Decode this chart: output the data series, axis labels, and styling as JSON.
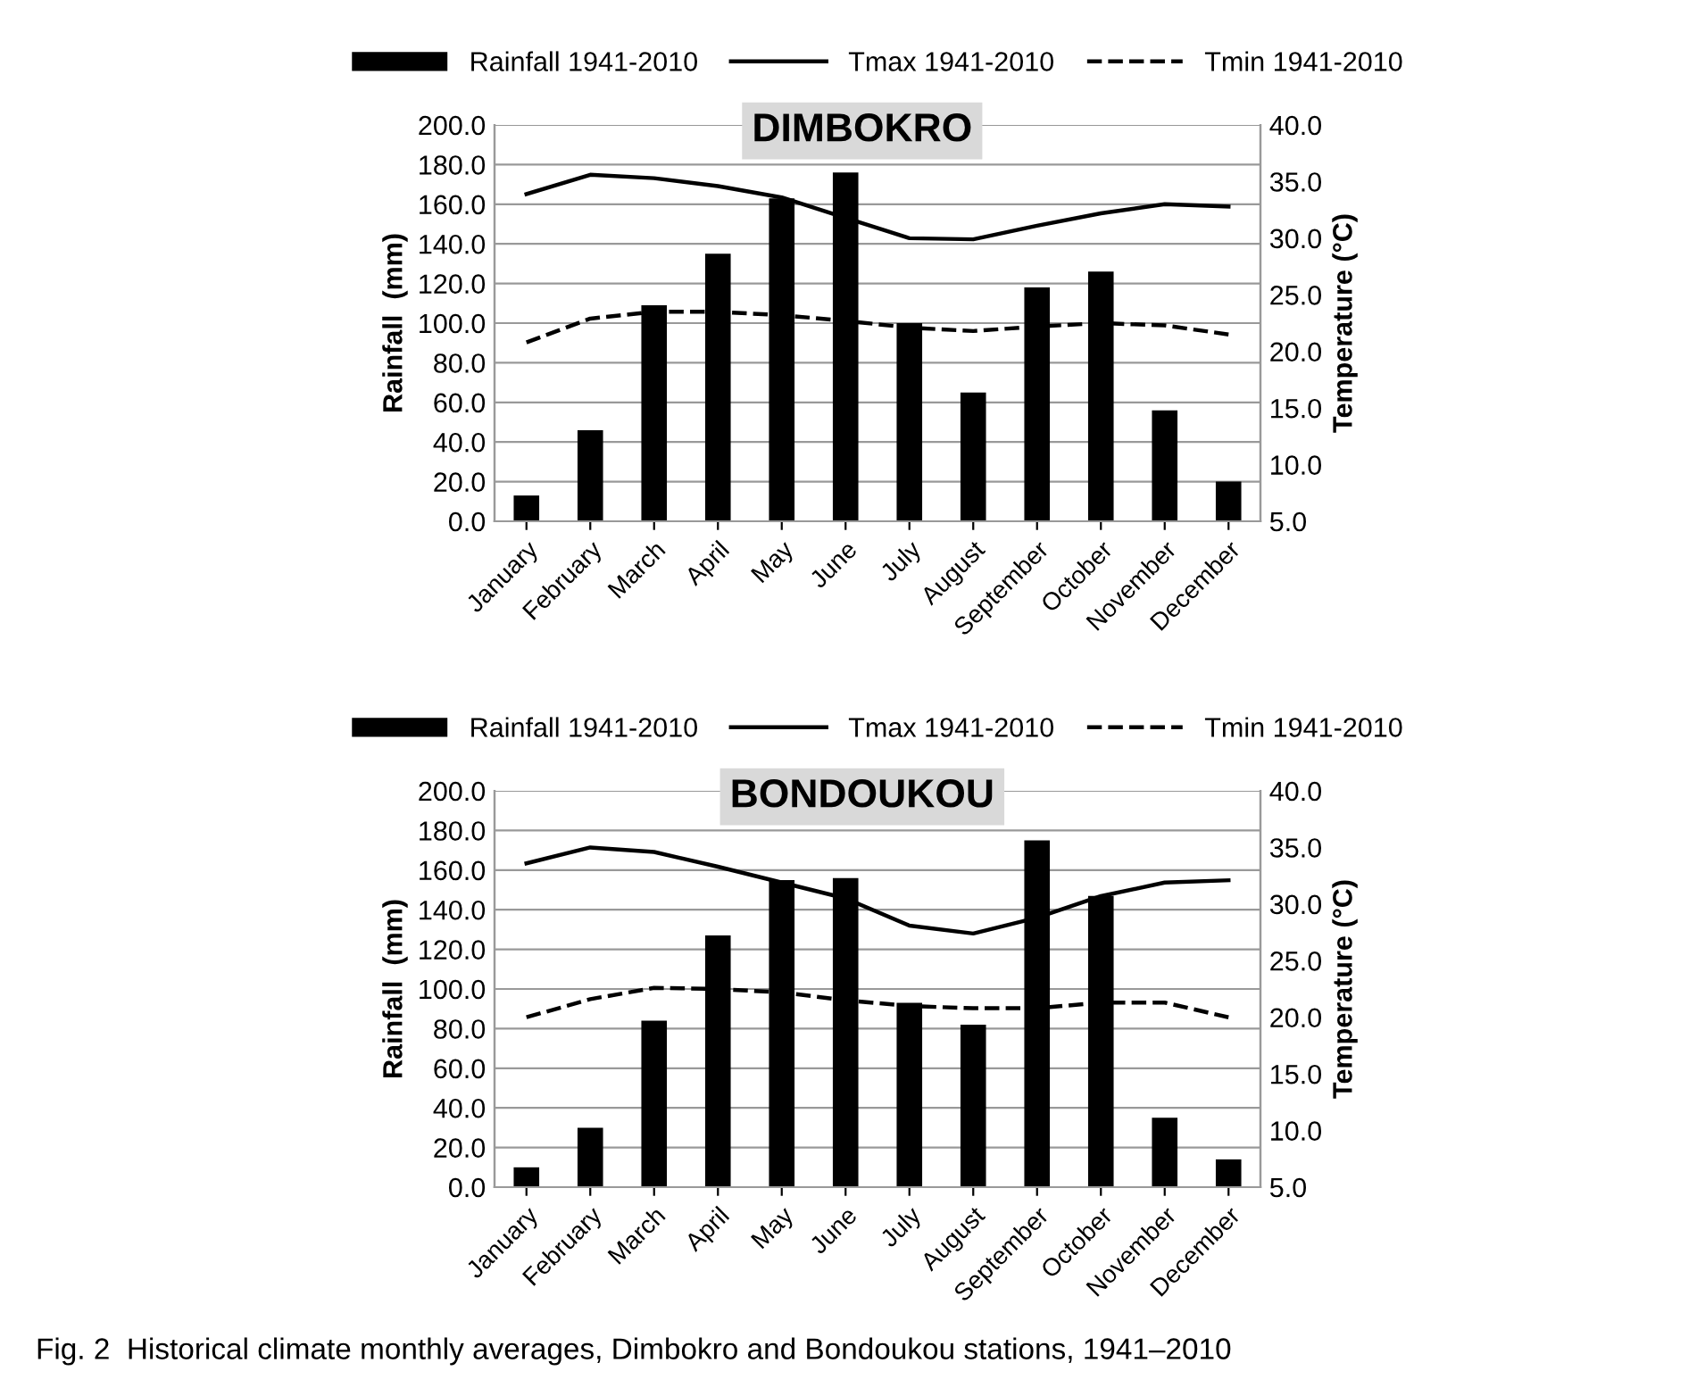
{
  "chart_data": [
    {
      "type": "bar",
      "title": "DIMBOKRO",
      "ylabel": "Rainfall  (mm)",
      "y2label": "Temperature (°C)",
      "categories": [
        "January",
        "February",
        "March",
        "April",
        "May",
        "June",
        "July",
        "August",
        "September",
        "October",
        "November",
        "December"
      ],
      "series": [
        {
          "name": "Rainfall 1941-2010",
          "color": "#000000",
          "values": [
            13,
            46,
            109,
            135,
            163,
            176,
            100,
            65,
            118,
            126,
            56,
            20
          ]
        },
        {
          "name": "Tmax 1941-2010",
          "type": "line",
          "axis": "y2",
          "line_style": "solid",
          "color": "#000000",
          "values": [
            33.9,
            35.6,
            35.3,
            34.6,
            33.6,
            31.8,
            30.0,
            29.9,
            31.1,
            32.2,
            33.0,
            32.8
          ]
        },
        {
          "name": "Tmin 1941-2010",
          "type": "line",
          "axis": "y2",
          "line_style": "dashed",
          "color": "#000000",
          "values": [
            20.8,
            22.9,
            23.5,
            23.5,
            23.2,
            22.7,
            22.1,
            21.8,
            22.2,
            22.5,
            22.3,
            21.5
          ]
        }
      ],
      "ylim": [
        0,
        200
      ],
      "yticks": [
        {
          "value": 0,
          "label": "0.0"
        },
        {
          "value": 20,
          "label": "20.0"
        },
        {
          "value": 40,
          "label": "40.0"
        },
        {
          "value": 60,
          "label": "60.0"
        },
        {
          "value": 80,
          "label": "80.0"
        },
        {
          "value": 100,
          "label": "100.0"
        },
        {
          "value": 120,
          "label": "120.0"
        },
        {
          "value": 140,
          "label": "140.0"
        },
        {
          "value": 160,
          "label": "160.0"
        },
        {
          "value": 180,
          "label": "180.0"
        },
        {
          "value": 200,
          "label": "200.0"
        }
      ],
      "y2lim": [
        5,
        40
      ],
      "y2ticks": [
        {
          "value": 5,
          "label": "5.0"
        },
        {
          "value": 10,
          "label": "10.0"
        },
        {
          "value": 15,
          "label": "15.0"
        },
        {
          "value": 20,
          "label": "20.0"
        },
        {
          "value": 25,
          "label": "25.0"
        },
        {
          "value": 30,
          "label": "30.0"
        },
        {
          "value": 35,
          "label": "35.0"
        },
        {
          "value": 40,
          "label": "40.0"
        }
      ],
      "grid": "y",
      "legend": "top"
    },
    {
      "type": "bar",
      "title": "BONDOUKOU",
      "ylabel": "Rainfall  (mm)",
      "y2label": "Temperature (°C)",
      "categories": [
        "January",
        "February",
        "March",
        "April",
        "May",
        "June",
        "July",
        "August",
        "September",
        "October",
        "November",
        "December"
      ],
      "series": [
        {
          "name": "Rainfall 1941-2010",
          "color": "#000000",
          "values": [
            10,
            30,
            84,
            127,
            155,
            156,
            93,
            82,
            175,
            147,
            35,
            14
          ]
        },
        {
          "name": "Tmax 1941-2010",
          "type": "line",
          "axis": "y2",
          "line_style": "solid",
          "color": "#000000",
          "values": [
            33.6,
            35.0,
            34.6,
            33.3,
            31.9,
            30.5,
            28.1,
            27.4,
            28.8,
            30.7,
            31.9,
            32.1
          ]
        },
        {
          "name": "Tmin 1941-2010",
          "type": "line",
          "axis": "y2",
          "line_style": "dashed",
          "color": "#000000",
          "values": [
            20.0,
            21.6,
            22.6,
            22.5,
            22.2,
            21.5,
            21.0,
            20.8,
            20.8,
            21.3,
            21.3,
            20.0
          ]
        }
      ],
      "ylim": [
        0,
        200
      ],
      "yticks": [
        {
          "value": 0,
          "label": "0.0"
        },
        {
          "value": 20,
          "label": "20.0"
        },
        {
          "value": 40,
          "label": "40.0"
        },
        {
          "value": 60,
          "label": "60.0"
        },
        {
          "value": 80,
          "label": "80.0"
        },
        {
          "value": 100,
          "label": "100.0"
        },
        {
          "value": 120,
          "label": "120.0"
        },
        {
          "value": 140,
          "label": "140.0"
        },
        {
          "value": 160,
          "label": "160.0"
        },
        {
          "value": 180,
          "label": "180.0"
        },
        {
          "value": 200,
          "label": "200.0"
        }
      ],
      "y2lim": [
        5,
        40
      ],
      "y2ticks": [
        {
          "value": 5,
          "label": "5.0"
        },
        {
          "value": 10,
          "label": "10.0"
        },
        {
          "value": 15,
          "label": "15.0"
        },
        {
          "value": 20,
          "label": "20.0"
        },
        {
          "value": 25,
          "label": "25.0"
        },
        {
          "value": 30,
          "label": "30.0"
        },
        {
          "value": 35,
          "label": "35.0"
        },
        {
          "value": 40,
          "label": "40.0"
        }
      ],
      "grid": "y",
      "legend": "top",
      "annotations": [
        "Fig. 2  Historical climate monthly averages, Dimbokro and Bondoukou stations, 1941–2010"
      ]
    }
  ]
}
